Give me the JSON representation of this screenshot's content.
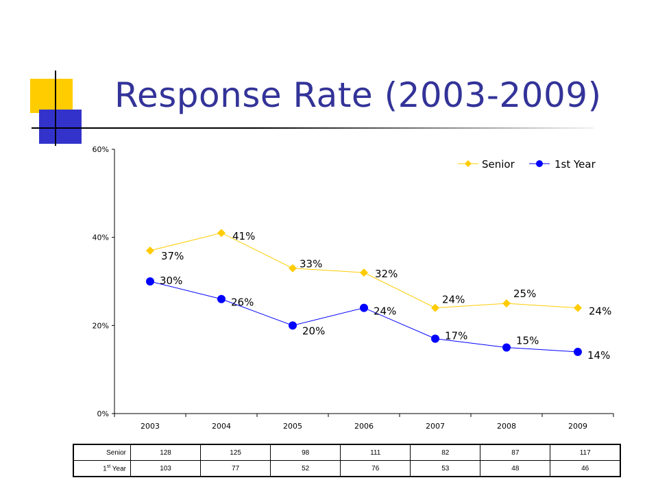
{
  "slide": {
    "title": "Response Rate (2003-2009)"
  },
  "colors": {
    "title": "#333399",
    "senior": "#ffcc00",
    "first_year": "#0000ff",
    "deco_yellow": "#ffcc00",
    "deco_blue": "#3333cc"
  },
  "chart_data": {
    "type": "line",
    "categories": [
      "2003",
      "2004",
      "2005",
      "2006",
      "2007",
      "2008",
      "2009"
    ],
    "ylim": [
      0,
      60
    ],
    "yticks": [
      "0%",
      "20%",
      "40%",
      "60%"
    ],
    "legend_position": "top-right",
    "series": [
      {
        "name": "Senior",
        "values": [
          37,
          41,
          33,
          32,
          24,
          25,
          24
        ],
        "labels": [
          "37%",
          "41%",
          "33%",
          "32%",
          "24%",
          "25%",
          "24%"
        ],
        "marker": "diamond",
        "color": "#ffcc00"
      },
      {
        "name": "1st Year",
        "values": [
          30,
          26,
          20,
          24,
          17,
          15,
          14
        ],
        "labels": [
          "30%",
          "26%",
          "20%",
          "24%",
          "17%",
          "15%",
          "14%"
        ],
        "marker": "circle",
        "color": "#0000ff"
      }
    ]
  },
  "table": {
    "rows": [
      {
        "label": "Senior",
        "label_sup": "",
        "label_rest": "",
        "cells": [
          "128",
          "125",
          "98",
          "111",
          "82",
          "87",
          "117"
        ]
      },
      {
        "label": "1",
        "label_sup": "st",
        "label_rest": " Year",
        "cells": [
          "103",
          "77",
          "52",
          "76",
          "53",
          "48",
          "46"
        ]
      }
    ]
  }
}
